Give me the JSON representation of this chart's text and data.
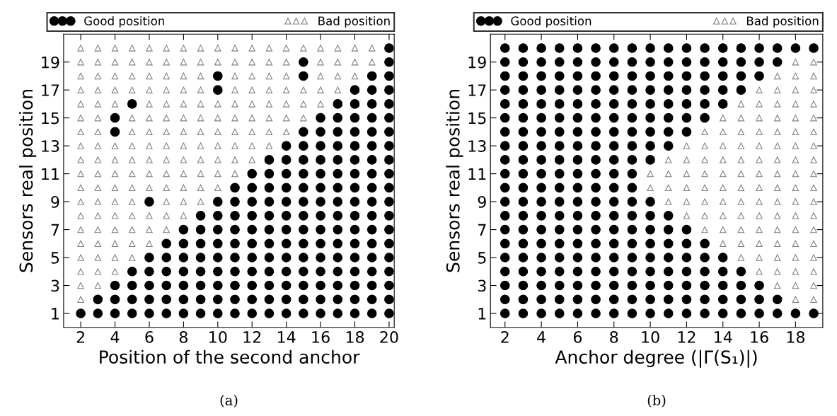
{
  "chart_data": [
    {
      "type": "scatter",
      "xlabel": "Position of the second anchor",
      "ylabel": "Sensors real position",
      "annotations": [
        "(a)"
      ],
      "legend": "top",
      "xlim": [
        1,
        20.3
      ],
      "ylim": [
        0,
        21
      ],
      "xticks": [
        2,
        4,
        6,
        8,
        10,
        12,
        14,
        16,
        18,
        20
      ],
      "yticks": [
        1,
        3,
        5,
        7,
        9,
        11,
        13,
        15,
        17,
        19
      ],
      "grid": false,
      "series": [
        {
          "name": "Good position",
          "color": "#000000",
          "marker": "circle",
          "x": [
            2,
            3,
            4,
            5,
            6,
            7,
            8,
            9,
            10,
            11,
            12,
            13,
            14,
            15,
            16,
            17,
            18,
            19,
            20,
            3,
            4,
            5,
            6,
            7,
            8,
            9,
            10,
            11,
            12,
            13,
            14,
            15,
            16,
            17,
            18,
            19,
            20,
            4,
            5,
            6,
            7,
            8,
            9,
            10,
            11,
            12,
            13,
            14,
            15,
            16,
            17,
            18,
            19,
            20,
            5,
            6,
            7,
            8,
            9,
            10,
            11,
            12,
            13,
            14,
            15,
            16,
            17,
            18,
            19,
            20,
            6,
            7,
            8,
            9,
            10,
            11,
            12,
            13,
            14,
            15,
            16,
            17,
            18,
            19,
            20,
            7,
            8,
            9,
            10,
            11,
            12,
            13,
            14,
            15,
            16,
            17,
            18,
            19,
            20,
            8,
            9,
            10,
            11,
            12,
            13,
            14,
            15,
            16,
            17,
            18,
            19,
            20,
            9,
            10,
            11,
            12,
            13,
            14,
            15,
            16,
            17,
            18,
            19,
            20,
            6,
            10,
            11,
            12,
            13,
            14,
            15,
            16,
            17,
            18,
            19,
            20,
            11,
            12,
            13,
            14,
            15,
            16,
            17,
            18,
            19,
            20,
            12,
            13,
            14,
            15,
            16,
            17,
            18,
            19,
            20,
            13,
            14,
            15,
            16,
            17,
            18,
            19,
            20,
            14,
            15,
            16,
            17,
            18,
            19,
            20,
            4,
            15,
            16,
            17,
            18,
            19,
            20,
            4,
            16,
            17,
            18,
            19,
            20,
            5,
            17,
            18,
            19,
            20,
            10,
            18,
            19,
            20,
            10,
            15,
            19,
            20,
            15,
            20,
            20
          ],
          "values": [
            1,
            1,
            1,
            1,
            1,
            1,
            1,
            1,
            1,
            1,
            1,
            1,
            1,
            1,
            1,
            1,
            1,
            1,
            1,
            2,
            2,
            2,
            2,
            2,
            2,
            2,
            2,
            2,
            2,
            2,
            2,
            2,
            2,
            2,
            2,
            2,
            2,
            3,
            3,
            3,
            3,
            3,
            3,
            3,
            3,
            3,
            3,
            3,
            3,
            3,
            3,
            3,
            3,
            3,
            4,
            4,
            4,
            4,
            4,
            4,
            4,
            4,
            4,
            4,
            4,
            4,
            4,
            4,
            4,
            4,
            5,
            5,
            5,
            5,
            5,
            5,
            5,
            5,
            5,
            5,
            5,
            5,
            5,
            5,
            5,
            6,
            6,
            6,
            6,
            6,
            6,
            6,
            6,
            6,
            6,
            6,
            6,
            6,
            6,
            7,
            7,
            7,
            7,
            7,
            7,
            7,
            7,
            7,
            7,
            7,
            7,
            7,
            8,
            8,
            8,
            8,
            8,
            8,
            8,
            8,
            8,
            8,
            8,
            8,
            9,
            9,
            9,
            9,
            9,
            9,
            9,
            9,
            9,
            9,
            9,
            9,
            10,
            10,
            10,
            10,
            10,
            10,
            10,
            10,
            10,
            10,
            11,
            11,
            11,
            11,
            11,
            11,
            11,
            11,
            11,
            12,
            12,
            12,
            12,
            12,
            12,
            12,
            12,
            13,
            13,
            13,
            13,
            13,
            13,
            13,
            14,
            14,
            14,
            14,
            14,
            14,
            14,
            15,
            15,
            15,
            15,
            15,
            15,
            16,
            16,
            16,
            16,
            16,
            17,
            17,
            17,
            17,
            18,
            18,
            18,
            18,
            19,
            19,
            20
          ]
        },
        {
          "name": "Bad position",
          "color": "#808080",
          "marker": "triangle",
          "x": [
            2,
            2,
            3,
            2,
            3,
            4,
            2,
            3,
            4,
            5,
            2,
            3,
            4,
            5,
            6,
            2,
            3,
            4,
            5,
            6,
            7,
            2,
            3,
            4,
            5,
            6,
            7,
            8,
            2,
            3,
            4,
            5,
            7,
            8,
            9,
            2,
            3,
            4,
            5,
            6,
            7,
            8,
            9,
            10,
            2,
            3,
            4,
            5,
            6,
            7,
            8,
            9,
            10,
            11,
            2,
            3,
            4,
            5,
            6,
            7,
            8,
            9,
            10,
            11,
            12,
            2,
            3,
            4,
            5,
            6,
            7,
            8,
            9,
            10,
            11,
            12,
            13,
            2,
            3,
            5,
            6,
            7,
            8,
            9,
            10,
            11,
            12,
            13,
            14,
            2,
            3,
            5,
            6,
            7,
            8,
            9,
            10,
            11,
            12,
            13,
            14,
            15,
            2,
            3,
            4,
            6,
            7,
            8,
            9,
            10,
            11,
            12,
            13,
            14,
            15,
            16,
            2,
            3,
            4,
            5,
            6,
            7,
            8,
            9,
            11,
            12,
            13,
            14,
            15,
            16,
            17,
            2,
            3,
            4,
            5,
            6,
            7,
            8,
            9,
            11,
            12,
            13,
            14,
            16,
            17,
            18,
            2,
            3,
            4,
            5,
            6,
            7,
            8,
            9,
            10,
            11,
            12,
            13,
            14,
            16,
            17,
            18,
            19,
            2,
            3,
            4,
            5,
            6,
            7,
            8,
            9,
            10,
            11,
            12,
            13,
            14,
            15,
            16,
            17,
            18,
            19
          ],
          "values": [
            2,
            3,
            3,
            4,
            4,
            4,
            5,
            5,
            5,
            5,
            6,
            6,
            6,
            6,
            6,
            7,
            7,
            7,
            7,
            7,
            7,
            8,
            8,
            8,
            8,
            8,
            8,
            8,
            9,
            9,
            9,
            9,
            9,
            9,
            9,
            10,
            10,
            10,
            10,
            10,
            10,
            10,
            10,
            10,
            11,
            11,
            11,
            11,
            11,
            11,
            11,
            11,
            11,
            11,
            12,
            12,
            12,
            12,
            12,
            12,
            12,
            12,
            12,
            12,
            12,
            13,
            13,
            13,
            13,
            13,
            13,
            13,
            13,
            13,
            13,
            13,
            13,
            14,
            14,
            14,
            14,
            14,
            14,
            14,
            14,
            14,
            14,
            14,
            14,
            15,
            15,
            15,
            15,
            15,
            15,
            15,
            15,
            15,
            15,
            15,
            15,
            15,
            16,
            16,
            16,
            16,
            16,
            16,
            16,
            16,
            16,
            16,
            16,
            16,
            16,
            16,
            17,
            17,
            17,
            17,
            17,
            17,
            17,
            17,
            17,
            17,
            17,
            17,
            17,
            17,
            17,
            18,
            18,
            18,
            18,
            18,
            18,
            18,
            18,
            18,
            18,
            18,
            18,
            18,
            18,
            18,
            19,
            19,
            19,
            19,
            19,
            19,
            19,
            19,
            19,
            19,
            19,
            19,
            19,
            19,
            19,
            19,
            19,
            20,
            20,
            20,
            20,
            20,
            20,
            20,
            20,
            20,
            20,
            20,
            20,
            20,
            20,
            20,
            20,
            20,
            20
          ]
        }
      ]
    },
    {
      "type": "scatter",
      "xlabel": "Anchor degree (|Γ(S₁)|)",
      "ylabel": "Sensors real position",
      "annotations": [
        "(b)"
      ],
      "legend": "top",
      "xlim": [
        1.2,
        19.5
      ],
      "ylim": [
        0,
        21
      ],
      "xticks": [
        2,
        4,
        6,
        8,
        10,
        12,
        14,
        16,
        18
      ],
      "yticks": [
        1,
        3,
        5,
        7,
        9,
        11,
        13,
        15,
        17,
        19
      ],
      "grid": false,
      "series": [
        {
          "name": "Good position",
          "color": "#000000",
          "marker": "circle",
          "x": [
            2,
            3,
            4,
            5,
            6,
            7,
            8,
            9,
            10,
            11,
            12,
            13,
            14,
            15,
            16,
            17,
            18,
            19,
            2,
            3,
            4,
            5,
            6,
            7,
            8,
            9,
            10,
            11,
            12,
            13,
            14,
            15,
            16,
            17,
            2,
            3,
            4,
            5,
            6,
            7,
            8,
            9,
            10,
            11,
            12,
            13,
            14,
            15,
            16,
            2,
            3,
            4,
            5,
            6,
            7,
            8,
            9,
            10,
            11,
            12,
            13,
            14,
            15,
            2,
            3,
            4,
            5,
            6,
            7,
            8,
            9,
            10,
            11,
            12,
            13,
            14,
            2,
            3,
            4,
            5,
            6,
            7,
            8,
            9,
            10,
            11,
            12,
            13,
            2,
            3,
            4,
            5,
            6,
            7,
            8,
            9,
            10,
            11,
            12,
            2,
            3,
            4,
            5,
            6,
            7,
            8,
            9,
            10,
            11,
            2,
            3,
            4,
            5,
            6,
            7,
            8,
            9,
            10,
            2,
            3,
            4,
            5,
            6,
            7,
            8,
            9,
            2,
            3,
            4,
            5,
            6,
            7,
            8,
            9,
            2,
            3,
            4,
            5,
            6,
            7,
            8,
            9,
            10,
            2,
            3,
            4,
            5,
            6,
            7,
            8,
            9,
            10,
            11,
            2,
            3,
            4,
            5,
            6,
            7,
            8,
            9,
            10,
            11,
            12,
            2,
            3,
            4,
            5,
            6,
            7,
            8,
            9,
            10,
            11,
            12,
            13,
            2,
            3,
            4,
            5,
            6,
            7,
            8,
            9,
            10,
            11,
            12,
            13,
            14,
            2,
            3,
            4,
            5,
            6,
            7,
            8,
            9,
            10,
            11,
            12,
            13,
            14,
            15,
            2,
            3,
            4,
            5,
            6,
            7,
            8,
            9,
            10,
            11,
            12,
            13,
            14,
            15,
            16,
            2,
            3,
            4,
            5,
            6,
            7,
            8,
            9,
            10,
            11,
            12,
            13,
            14,
            15,
            16,
            17,
            2,
            3,
            4,
            5,
            6,
            7,
            8,
            9,
            10,
            11,
            12,
            13,
            14,
            15,
            16,
            17,
            18,
            19
          ],
          "values": [
            1,
            1,
            1,
            1,
            1,
            1,
            1,
            1,
            1,
            1,
            1,
            1,
            1,
            1,
            1,
            1,
            1,
            1,
            2,
            2,
            2,
            2,
            2,
            2,
            2,
            2,
            2,
            2,
            2,
            2,
            2,
            2,
            2,
            2,
            3,
            3,
            3,
            3,
            3,
            3,
            3,
            3,
            3,
            3,
            3,
            3,
            3,
            3,
            3,
            4,
            4,
            4,
            4,
            4,
            4,
            4,
            4,
            4,
            4,
            4,
            4,
            4,
            4,
            5,
            5,
            5,
            5,
            5,
            5,
            5,
            5,
            5,
            5,
            5,
            5,
            5,
            6,
            6,
            6,
            6,
            6,
            6,
            6,
            6,
            6,
            6,
            6,
            6,
            7,
            7,
            7,
            7,
            7,
            7,
            7,
            7,
            7,
            7,
            7,
            8,
            8,
            8,
            8,
            8,
            8,
            8,
            8,
            8,
            8,
            9,
            9,
            9,
            9,
            9,
            9,
            9,
            9,
            9,
            10,
            10,
            10,
            10,
            10,
            10,
            10,
            10,
            11,
            11,
            11,
            11,
            11,
            11,
            11,
            11,
            12,
            12,
            12,
            12,
            12,
            12,
            12,
            12,
            12,
            13,
            13,
            13,
            13,
            13,
            13,
            13,
            13,
            13,
            13,
            14,
            14,
            14,
            14,
            14,
            14,
            14,
            14,
            14,
            14,
            14,
            15,
            15,
            15,
            15,
            15,
            15,
            15,
            15,
            15,
            15,
            15,
            15,
            16,
            16,
            16,
            16,
            16,
            16,
            16,
            16,
            16,
            16,
            16,
            16,
            16,
            17,
            17,
            17,
            17,
            17,
            17,
            17,
            17,
            17,
            17,
            17,
            17,
            17,
            17,
            18,
            18,
            18,
            18,
            18,
            18,
            18,
            18,
            18,
            18,
            18,
            18,
            18,
            18,
            18,
            19,
            19,
            19,
            19,
            19,
            19,
            19,
            19,
            19,
            19,
            19,
            19,
            19,
            19,
            19,
            19,
            20,
            20,
            20,
            20,
            20,
            20,
            20,
            20,
            20,
            20,
            20,
            20,
            20,
            20,
            20,
            20,
            20,
            20
          ]
        },
        {
          "name": "Bad position",
          "color": "#808080",
          "marker": "triangle",
          "x": [
            18,
            19,
            17,
            18,
            19,
            16,
            17,
            18,
            19,
            15,
            16,
            17,
            18,
            19,
            14,
            15,
            16,
            17,
            18,
            19,
            13,
            14,
            15,
            16,
            17,
            18,
            19,
            12,
            13,
            14,
            15,
            16,
            17,
            18,
            19,
            11,
            12,
            13,
            14,
            15,
            16,
            17,
            18,
            19,
            10,
            11,
            12,
            13,
            14,
            15,
            16,
            17,
            18,
            19,
            10,
            11,
            12,
            13,
            14,
            15,
            16,
            17,
            18,
            19,
            11,
            12,
            13,
            14,
            15,
            16,
            17,
            18,
            19,
            12,
            13,
            14,
            15,
            16,
            17,
            18,
            19,
            13,
            14,
            15,
            16,
            17,
            18,
            19,
            14,
            15,
            16,
            17,
            18,
            19,
            15,
            16,
            17,
            18,
            19,
            16,
            17,
            18,
            19,
            17,
            18,
            19,
            18,
            19
          ],
          "values": [
            2,
            2,
            3,
            3,
            3,
            4,
            4,
            4,
            4,
            5,
            5,
            5,
            5,
            5,
            6,
            6,
            6,
            6,
            6,
            6,
            7,
            7,
            7,
            7,
            7,
            7,
            7,
            8,
            8,
            8,
            8,
            8,
            8,
            8,
            8,
            9,
            9,
            9,
            9,
            9,
            9,
            9,
            9,
            9,
            10,
            10,
            10,
            10,
            10,
            10,
            10,
            10,
            10,
            10,
            11,
            11,
            11,
            11,
            11,
            11,
            11,
            11,
            11,
            11,
            12,
            12,
            12,
            12,
            12,
            12,
            12,
            12,
            12,
            13,
            13,
            13,
            13,
            13,
            13,
            13,
            13,
            14,
            14,
            14,
            14,
            14,
            14,
            14,
            15,
            15,
            15,
            15,
            15,
            15,
            16,
            16,
            16,
            16,
            16,
            17,
            17,
            17,
            17,
            18,
            18,
            18,
            19,
            19
          ]
        }
      ]
    }
  ]
}
